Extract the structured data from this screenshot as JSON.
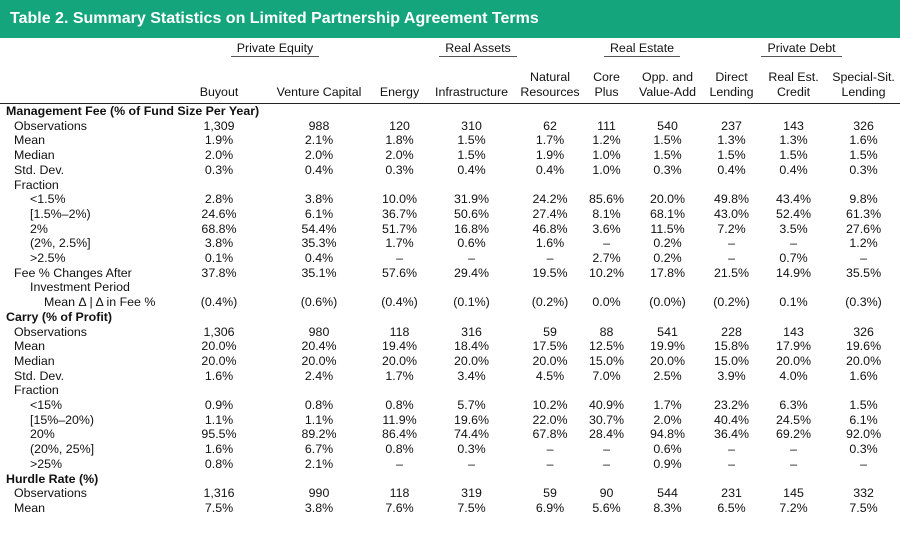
{
  "title": "Table 2. Summary Statistics on Limited Partnership Agreement Terms",
  "groups": [
    {
      "label": "Private Equity",
      "span": 2
    },
    {
      "label": "Real Assets",
      "span": 3
    },
    {
      "label": "Real Estate",
      "span": 2
    },
    {
      "label": "Private Debt",
      "span": 3
    }
  ],
  "columns": [
    [
      "Buyout"
    ],
    [
      "Venture Capital"
    ],
    [
      "Energy"
    ],
    [
      "Infrastructure"
    ],
    [
      "Natural",
      "Resources"
    ],
    [
      "Core",
      "Plus"
    ],
    [
      "Opp. and",
      "Value-Add"
    ],
    [
      "Direct",
      "Lending"
    ],
    [
      "Real Est.",
      "Credit"
    ],
    [
      "Special-Sit.",
      "Lending"
    ]
  ],
  "rows": [
    {
      "label": "Management Fee (% of Fund Size Per Year)",
      "level": 0,
      "values": []
    },
    {
      "label": "Observations",
      "level": 1,
      "values": [
        "1,309",
        "988",
        "120",
        "310",
        "62",
        "111",
        "540",
        "237",
        "143",
        "326"
      ]
    },
    {
      "label": "Mean",
      "level": 1,
      "values": [
        "1.9%",
        "2.1%",
        "1.8%",
        "1.5%",
        "1.7%",
        "1.2%",
        "1.5%",
        "1.3%",
        "1.3%",
        "1.6%"
      ]
    },
    {
      "label": "Median",
      "level": 1,
      "values": [
        "2.0%",
        "2.0%",
        "2.0%",
        "1.5%",
        "1.9%",
        "1.0%",
        "1.5%",
        "1.5%",
        "1.5%",
        "1.5%"
      ]
    },
    {
      "label": "Std. Dev.",
      "level": 1,
      "values": [
        "0.3%",
        "0.4%",
        "0.3%",
        "0.4%",
        "0.4%",
        "1.0%",
        "0.3%",
        "0.4%",
        "0.4%",
        "0.3%"
      ]
    },
    {
      "label": "Fraction",
      "level": 1,
      "values": []
    },
    {
      "label": "<1.5%",
      "level": 2,
      "values": [
        "2.8%",
        "3.8%",
        "10.0%",
        "31.9%",
        "24.2%",
        "85.6%",
        "20.0%",
        "49.8%",
        "43.4%",
        "9.8%"
      ]
    },
    {
      "label": "[1.5%–2%)",
      "level": 2,
      "values": [
        "24.6%",
        "6.1%",
        "36.7%",
        "50.6%",
        "27.4%",
        "8.1%",
        "68.1%",
        "43.0%",
        "52.4%",
        "61.3%"
      ]
    },
    {
      "label": "2%",
      "level": 2,
      "values": [
        "68.8%",
        "54.4%",
        "51.7%",
        "16.8%",
        "46.8%",
        "3.6%",
        "11.5%",
        "7.2%",
        "3.5%",
        "27.6%"
      ]
    },
    {
      "label": "(2%, 2.5%]",
      "level": 2,
      "values": [
        "3.8%",
        "35.3%",
        "1.7%",
        "0.6%",
        "1.6%",
        "–",
        "0.2%",
        "–",
        "–",
        "1.2%"
      ]
    },
    {
      "label": ">2.5%",
      "level": 2,
      "values": [
        "0.1%",
        "0.4%",
        "–",
        "–",
        "–",
        "2.7%",
        "0.2%",
        "–",
        "0.7%",
        "–"
      ]
    },
    {
      "label": "Fee % Changes After",
      "level": 1,
      "values": [
        "37.8%",
        "35.1%",
        "57.6%",
        "29.4%",
        "19.5%",
        "10.2%",
        "17.8%",
        "21.5%",
        "14.9%",
        "35.5%"
      ]
    },
    {
      "label": "Investment Period",
      "level": 2,
      "values": []
    },
    {
      "label": "Mean Δ | Δ in Fee %",
      "level": 3,
      "values": [
        "(0.4%)",
        "(0.6%)",
        "(0.4%)",
        "(0.1%)",
        "(0.2%)",
        "0.0%",
        "(0.0%)",
        "(0.2%)",
        "0.1%",
        "(0.3%)"
      ]
    },
    {
      "label": "Carry (% of Profit)",
      "level": 0,
      "values": []
    },
    {
      "label": "Observations",
      "level": 1,
      "values": [
        "1,306",
        "980",
        "118",
        "316",
        "59",
        "88",
        "541",
        "228",
        "143",
        "326"
      ]
    },
    {
      "label": "Mean",
      "level": 1,
      "values": [
        "20.0%",
        "20.4%",
        "19.4%",
        "18.4%",
        "17.5%",
        "12.5%",
        "19.9%",
        "15.8%",
        "17.9%",
        "19.6%"
      ]
    },
    {
      "label": "Median",
      "level": 1,
      "values": [
        "20.0%",
        "20.0%",
        "20.0%",
        "20.0%",
        "20.0%",
        "15.0%",
        "20.0%",
        "15.0%",
        "20.0%",
        "20.0%"
      ]
    },
    {
      "label": "Std. Dev.",
      "level": 1,
      "values": [
        "1.6%",
        "2.4%",
        "1.7%",
        "3.4%",
        "4.5%",
        "7.0%",
        "2.5%",
        "3.9%",
        "4.0%",
        "1.6%"
      ]
    },
    {
      "label": "Fraction",
      "level": 1,
      "values": []
    },
    {
      "label": "<15%",
      "level": 2,
      "values": [
        "0.9%",
        "0.8%",
        "0.8%",
        "5.7%",
        "10.2%",
        "40.9%",
        "1.7%",
        "23.2%",
        "6.3%",
        "1.5%"
      ]
    },
    {
      "label": "[15%–20%)",
      "level": 2,
      "values": [
        "1.1%",
        "1.1%",
        "11.9%",
        "19.6%",
        "22.0%",
        "30.7%",
        "2.0%",
        "40.4%",
        "24.5%",
        "6.1%"
      ]
    },
    {
      "label": "20%",
      "level": 2,
      "values": [
        "95.5%",
        "89.2%",
        "86.4%",
        "74.4%",
        "67.8%",
        "28.4%",
        "94.8%",
        "36.4%",
        "69.2%",
        "92.0%"
      ]
    },
    {
      "label": "(20%, 25%]",
      "level": 2,
      "values": [
        "1.6%",
        "6.7%",
        "0.8%",
        "0.3%",
        "–",
        "–",
        "0.6%",
        "–",
        "–",
        "0.3%"
      ]
    },
    {
      "label": ">25%",
      "level": 2,
      "values": [
        "0.8%",
        "2.1%",
        "–",
        "–",
        "–",
        "–",
        "0.9%",
        "–",
        "–",
        "–"
      ]
    },
    {
      "label": "Hurdle Rate (%)",
      "level": 0,
      "values": []
    },
    {
      "label": "Observations",
      "level": 1,
      "values": [
        "1,316",
        "990",
        "118",
        "319",
        "59",
        "90",
        "544",
        "231",
        "145",
        "332"
      ]
    },
    {
      "label": "Mean",
      "level": 1,
      "values": [
        "7.5%",
        "3.8%",
        "7.6%",
        "7.5%",
        "6.9%",
        "5.6%",
        "8.3%",
        "6.5%",
        "7.2%",
        "7.5%"
      ]
    }
  ]
}
